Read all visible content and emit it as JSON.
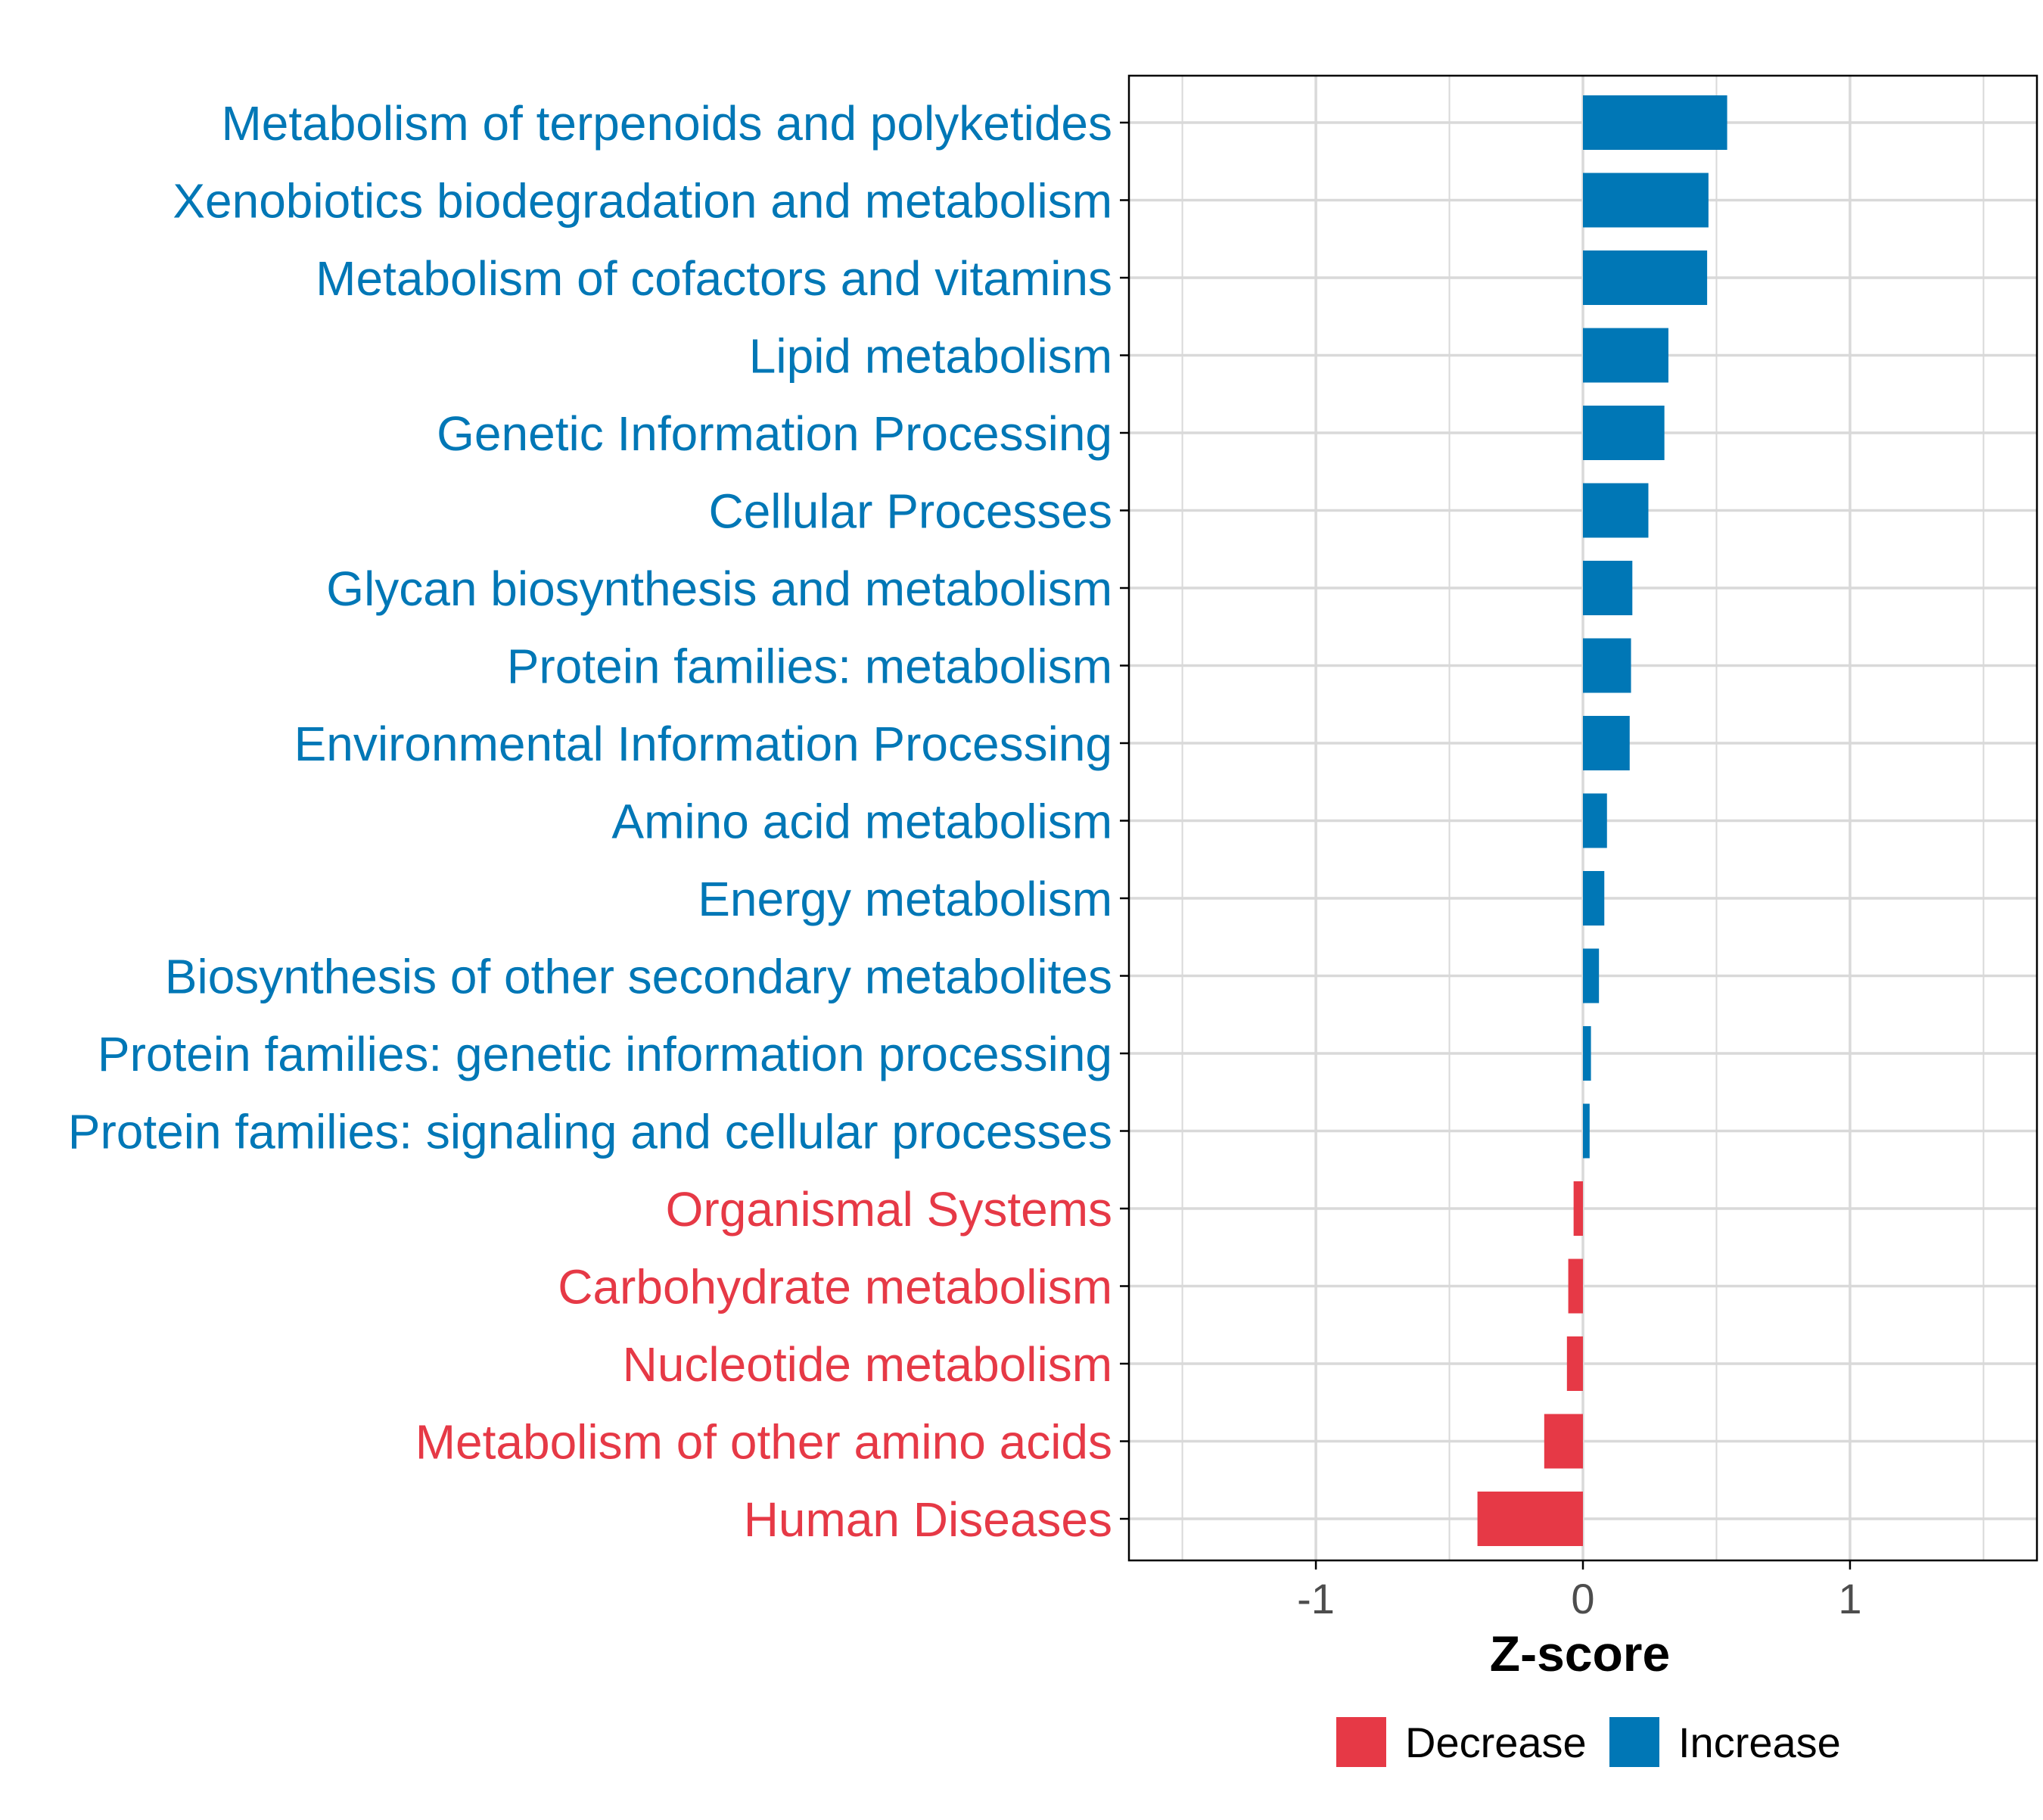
{
  "chart_data": {
    "type": "bar",
    "orientation": "horizontal",
    "categories": [
      "Metabolism of terpenoids and polyketides",
      "Xenobiotics biodegradation and metabolism",
      "Metabolism of cofactors and vitamins",
      "Lipid metabolism",
      "Genetic Information Processing",
      "Cellular Processes",
      "Glycan biosynthesis and metabolism",
      "Protein families: metabolism",
      "Environmental Information Processing",
      "Amino acid metabolism",
      "Energy metabolism",
      "Biosynthesis of other secondary metabolites",
      "Protein families: genetic information processing",
      "Protein families: signaling and cellular processes",
      "Organismal Systems",
      "Carbohydrate metabolism",
      "Nucleotide metabolism",
      "Metabolism of other amino acids",
      "Human Diseases"
    ],
    "values": [
      0.54,
      0.47,
      0.465,
      0.32,
      0.305,
      0.245,
      0.185,
      0.18,
      0.175,
      0.09,
      0.08,
      0.06,
      0.03,
      0.025,
      -0.035,
      -0.055,
      -0.06,
      -0.145,
      -0.395
    ],
    "groups": [
      "Increase",
      "Increase",
      "Increase",
      "Increase",
      "Increase",
      "Increase",
      "Increase",
      "Increase",
      "Increase",
      "Increase",
      "Increase",
      "Increase",
      "Increase",
      "Increase",
      "Decrease",
      "Decrease",
      "Decrease",
      "Decrease",
      "Decrease"
    ],
    "title": "",
    "xlabel": "Z-score",
    "ylabel": "",
    "xlim": [
      -1.7,
      1.7
    ],
    "xticks": [
      -1,
      0,
      1
    ],
    "xtick_labels": [
      "-1",
      "0",
      "1"
    ],
    "grid": true,
    "legend": {
      "placement": "bottom",
      "entries": [
        {
          "label": "Decrease",
          "color": "#e63946"
        },
        {
          "label": "Increase",
          "color": "#0077b6"
        }
      ]
    },
    "colors": {
      "Decrease": "#e63946",
      "Increase": "#0077b6",
      "grid": "#d9d9d9",
      "axis": "#000000",
      "tick_text": "#4d4d4d"
    }
  }
}
